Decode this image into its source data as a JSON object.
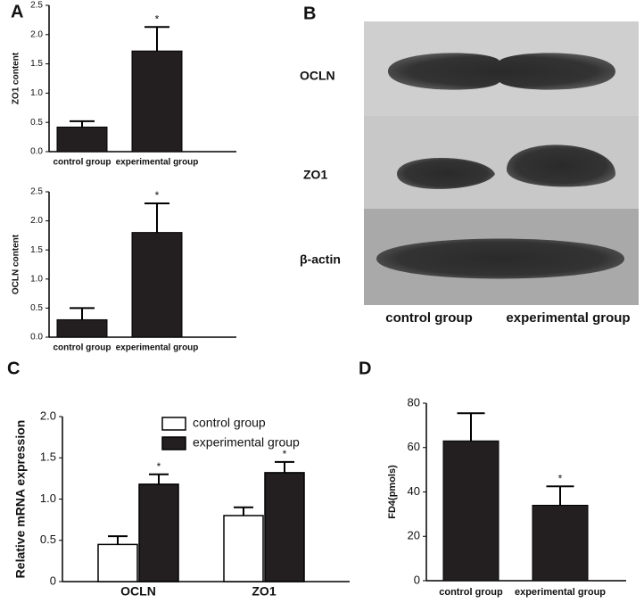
{
  "panel_labels": [
    "A",
    "B",
    "C",
    "D"
  ],
  "blot": {
    "rows": [
      "OCLN",
      "ZO1",
      "β-actin"
    ],
    "columns": [
      "control group",
      "experimental group"
    ]
  },
  "chart_data": [
    {
      "type": "bar",
      "y_label": "ZO1 content",
      "categories": [
        "control group",
        "experimental group"
      ],
      "values": [
        0.42,
        1.72
      ],
      "errors": [
        0.1,
        0.41
      ],
      "color": "#231f20",
      "ylim": [
        0,
        2.5
      ],
      "yticks": [
        {
          "value": 0,
          "label": "0.0"
        },
        0.5,
        {
          "value": 1,
          "label": "1.0"
        },
        1.5,
        {
          "value": 2,
          "label": "2.0"
        },
        2.5
      ],
      "annotations": [
        {
          "text": "*",
          "x": "experimental group"
        }
      ]
    },
    {
      "type": "bar",
      "y_label": "OCLN content",
      "categories": [
        "control group",
        "experimental group"
      ],
      "values": [
        0.3,
        1.8
      ],
      "errors": [
        0.2,
        0.5
      ],
      "color": "#231f20",
      "ylim": [
        0,
        2.5
      ],
      "yticks": [
        {
          "value": 0,
          "label": "0.0"
        },
        0.5,
        {
          "value": 1,
          "label": "1.0"
        },
        1.5,
        {
          "value": 2,
          "label": "2.0"
        },
        2.5
      ],
      "annotations": [
        {
          "text": "*",
          "x": "experimental group"
        }
      ]
    },
    {
      "type": "grouped-bar",
      "y_label": "Relative mRNA expression",
      "categories": [
        "OCLN",
        "ZO1"
      ],
      "series": [
        {
          "name": "control group",
          "color": "#ffffff",
          "values": [
            0.45,
            0.8
          ],
          "errors": [
            0.1,
            0.1
          ]
        },
        {
          "name": "experimental group",
          "color": "#231f20",
          "values": [
            1.18,
            1.32
          ],
          "errors": [
            0.12,
            0.13
          ]
        }
      ],
      "ylim": [
        0,
        2
      ],
      "yticks": [
        0,
        0.5,
        {
          "value": 1,
          "label": "1.0"
        },
        1.5,
        {
          "value": 2,
          "label": "2.0"
        }
      ],
      "legend": "top-left",
      "annotations": [
        {
          "text": "*",
          "x": "OCLN",
          "series": "experimental group"
        },
        {
          "text": "*",
          "x": "ZO1",
          "series": "experimental group"
        }
      ]
    },
    {
      "type": "bar",
      "y_label": "FD4(pmols)",
      "categories": [
        "control group",
        "experimental group"
      ],
      "values": [
        63,
        34
      ],
      "errors": [
        12.5,
        8.5
      ],
      "color": "#231f20",
      "ylim": [
        0,
        80
      ],
      "yticks": [
        0,
        20,
        40,
        60,
        80
      ],
      "annotations": [
        {
          "text": "*",
          "x": "experimental group"
        }
      ]
    }
  ]
}
